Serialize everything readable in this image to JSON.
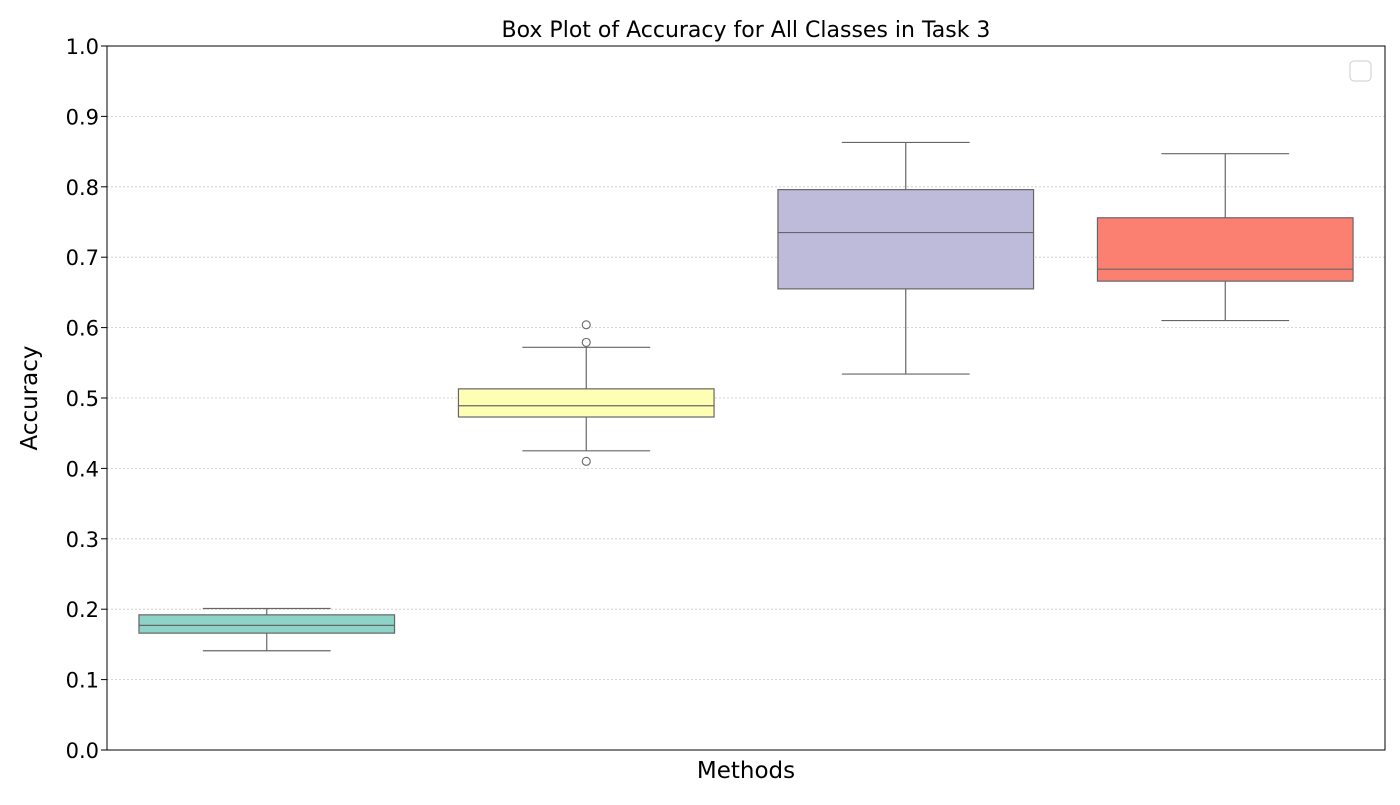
{
  "chart_data": {
    "type": "box",
    "title": "Box Plot of Accuracy for All Classes in Task 3",
    "xlabel": "Methods",
    "ylabel": "Accuracy",
    "ylim": [
      0.0,
      1.0
    ],
    "yticks": [
      "0.0",
      "0.1",
      "0.2",
      "0.3",
      "0.4",
      "0.5",
      "0.6",
      "0.7",
      "0.8",
      "0.9",
      "1.0"
    ],
    "grid": "horizontal dotted",
    "legend": "top-right (empty)",
    "boxes": [
      {
        "whisker_low": 0.141,
        "q1": 0.166,
        "median": 0.177,
        "q3": 0.192,
        "whisker_high": 0.201,
        "outliers": [],
        "color": "#8dd3c7"
      },
      {
        "whisker_low": 0.425,
        "q1": 0.473,
        "median": 0.489,
        "q3": 0.513,
        "whisker_high": 0.572,
        "outliers": [
          0.604,
          0.579,
          0.41
        ],
        "color": "#ffffb3"
      },
      {
        "whisker_low": 0.534,
        "q1": 0.655,
        "median": 0.735,
        "q3": 0.796,
        "whisker_high": 0.863,
        "outliers": [],
        "color": "#bebada"
      },
      {
        "whisker_low": 0.61,
        "q1": 0.666,
        "median": 0.683,
        "q3": 0.756,
        "whisker_high": 0.847,
        "outliers": [],
        "color": "#fb8072"
      }
    ]
  }
}
